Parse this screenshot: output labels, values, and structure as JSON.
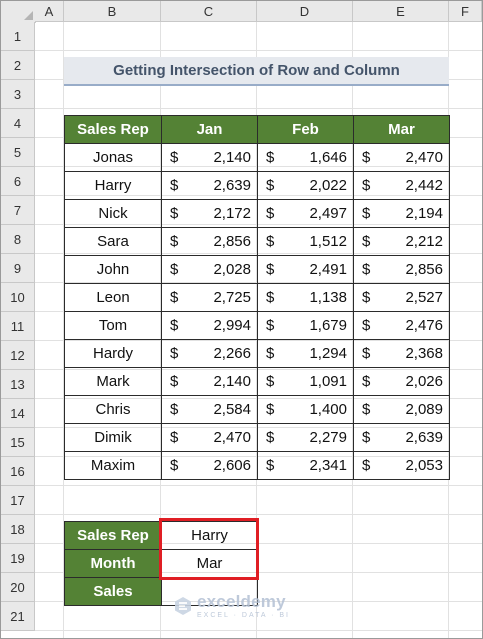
{
  "columns": [
    "A",
    "B",
    "C",
    "D",
    "E",
    "F"
  ],
  "rows": [
    "1",
    "2",
    "3",
    "4",
    "5",
    "6",
    "7",
    "8",
    "9",
    "10",
    "11",
    "12",
    "13",
    "14",
    "15",
    "16",
    "17",
    "18",
    "19",
    "20",
    "21"
  ],
  "title": "Getting Intersection of Row and Column",
  "table": {
    "headers": [
      "Sales Rep",
      "Jan",
      "Feb",
      "Mar"
    ],
    "currency_symbol": "$",
    "rows": [
      {
        "name": "Jonas",
        "jan": "2,140",
        "feb": "1,646",
        "mar": "2,470"
      },
      {
        "name": "Harry",
        "jan": "2,639",
        "feb": "2,022",
        "mar": "2,442"
      },
      {
        "name": "Nick",
        "jan": "2,172",
        "feb": "2,497",
        "mar": "2,194"
      },
      {
        "name": "Sara",
        "jan": "2,856",
        "feb": "1,512",
        "mar": "2,212"
      },
      {
        "name": "John",
        "jan": "2,028",
        "feb": "2,491",
        "mar": "2,856"
      },
      {
        "name": "Leon",
        "jan": "2,725",
        "feb": "1,138",
        "mar": "2,527"
      },
      {
        "name": "Tom",
        "jan": "2,994",
        "feb": "1,679",
        "mar": "2,476"
      },
      {
        "name": "Hardy",
        "jan": "2,266",
        "feb": "1,294",
        "mar": "2,368"
      },
      {
        "name": "Mark",
        "jan": "2,140",
        "feb": "1,091",
        "mar": "2,026"
      },
      {
        "name": "Chris",
        "jan": "2,584",
        "feb": "1,400",
        "mar": "2,089"
      },
      {
        "name": "Dimik",
        "jan": "2,470",
        "feb": "2,279",
        "mar": "2,639"
      },
      {
        "name": "Maxim",
        "jan": "2,606",
        "feb": "2,341",
        "mar": "2,053"
      }
    ]
  },
  "lookup": {
    "sales_rep_label": "Sales Rep",
    "sales_rep_value": "Harry",
    "month_label": "Month",
    "month_value": "Mar",
    "sales_label": "Sales",
    "sales_value": ""
  },
  "watermark": {
    "name": "exceldemy",
    "tagline": "EXCEL · DATA · BI"
  },
  "colors": {
    "header_green": "#548235",
    "title_bg": "#e6e9ee",
    "title_text": "#44546a",
    "highlight_red": "#e01e24"
  }
}
